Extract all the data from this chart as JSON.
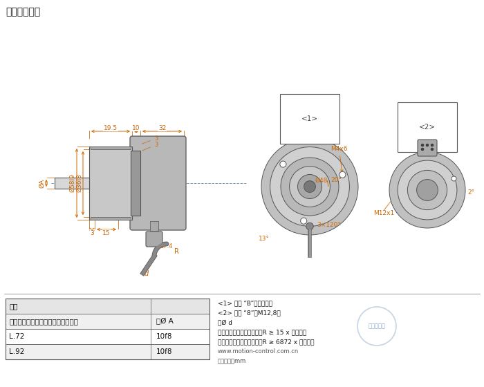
{
  "title": "同步夹紧法兰",
  "bg_color": "#ffffff",
  "line_color": "#555555",
  "dim_color": "#cc6600",
  "table_data": [
    [
      "安装",
      ""
    ],
    [
      "法兰，防护等级，轴（见订购信息）",
      "轴Ø A"
    ],
    [
      "L.72",
      "10f8"
    ],
    [
      "L.92",
      "10f8"
    ]
  ],
  "notes": [
    "<1> 连接 “B”：轴向电缆",
    "<2> 连接 “8”：M12,8脚",
    "轴Ø d",
    "水平性安装时电缆弯曲半径R ≥ 15 x 电缆直径",
    "垂直性安装时电缆弯曲半径R ≥ 6872 x 电缆直径",
    "www.motion-control.com.cn",
    "尺寸单位：mm"
  ]
}
